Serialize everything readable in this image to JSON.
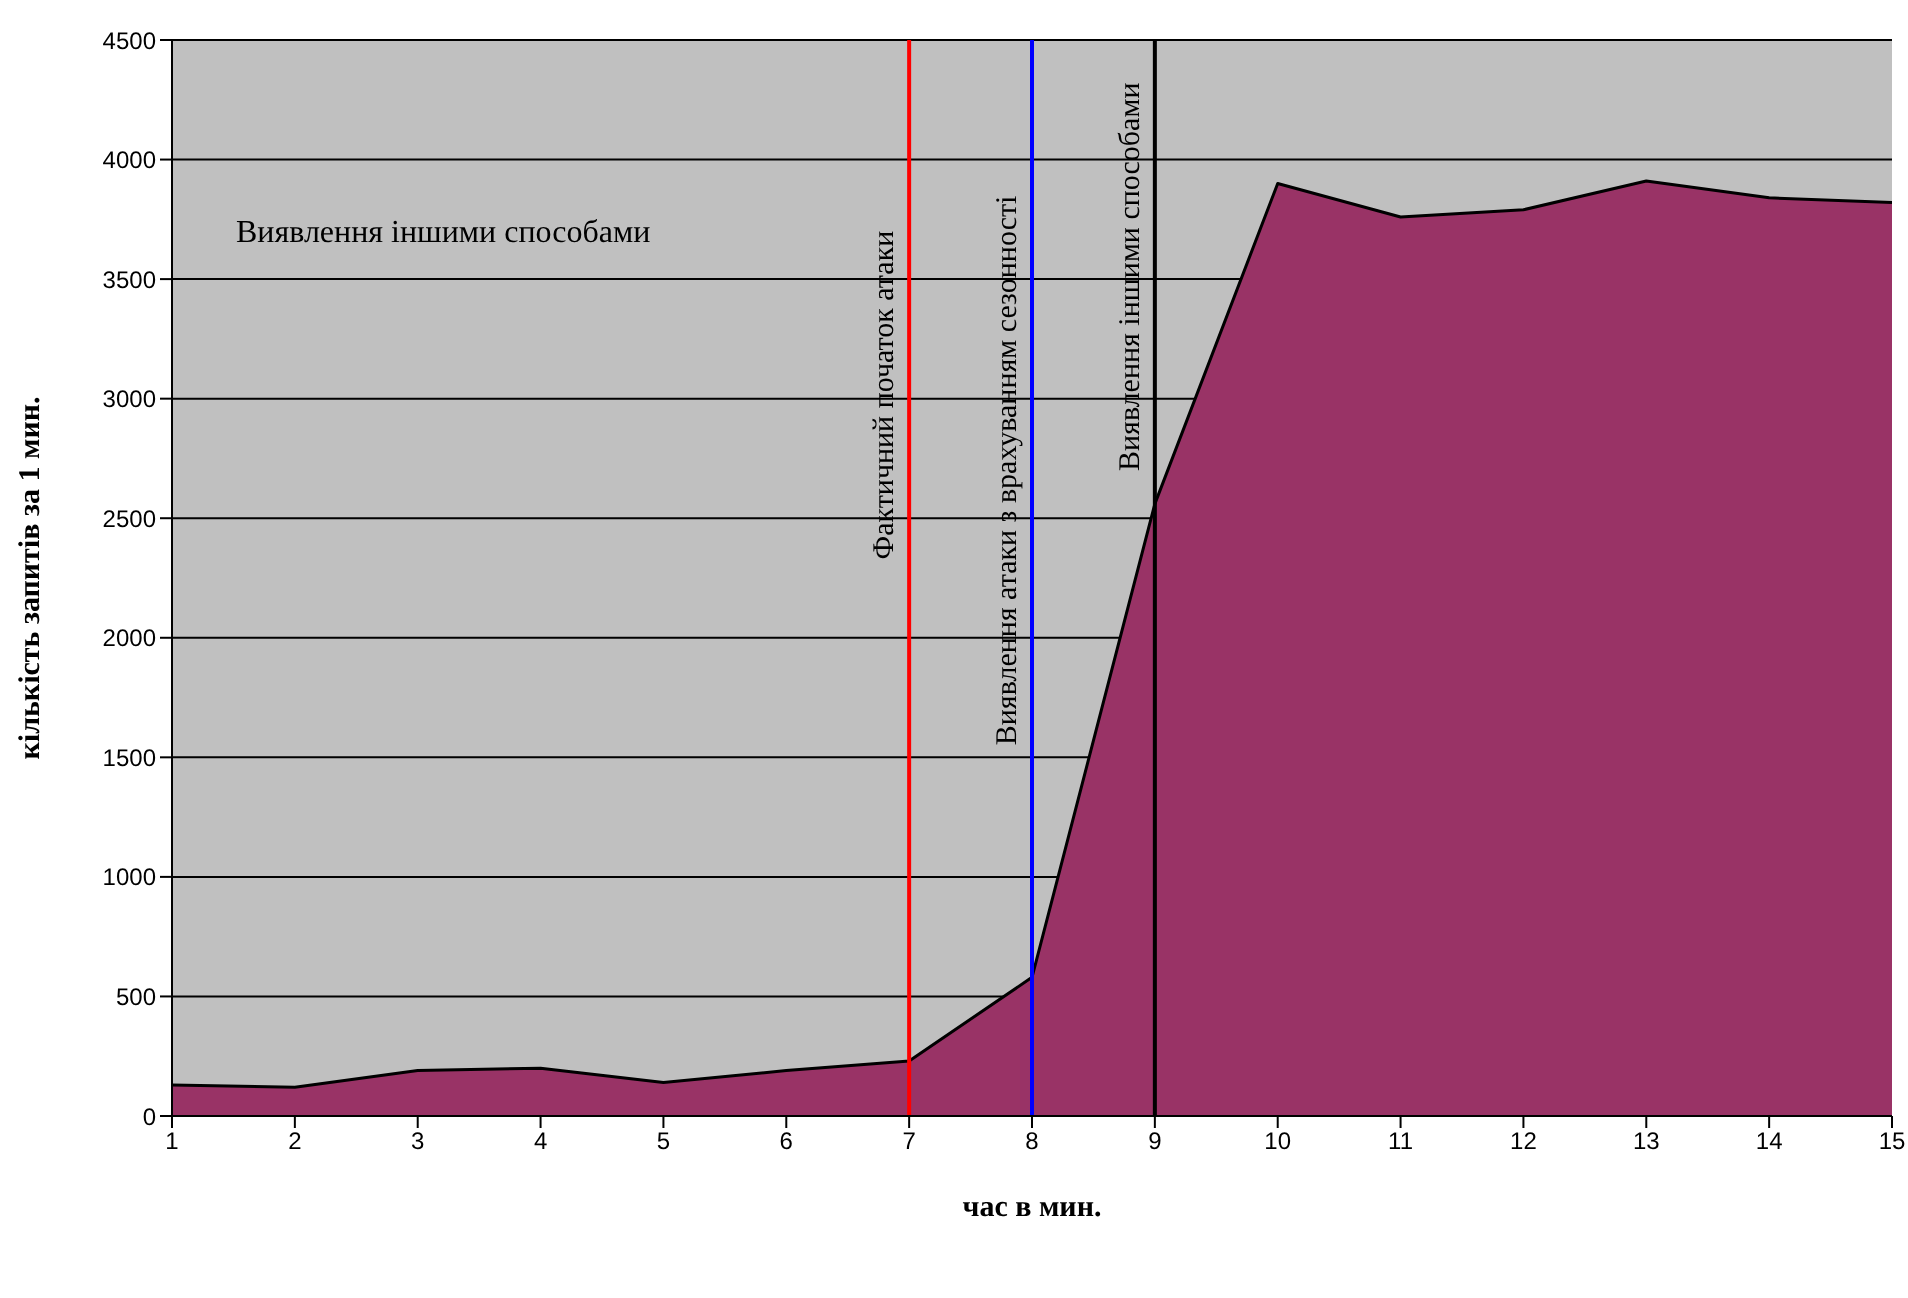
{
  "chart_data": {
    "type": "area",
    "xlabel": "час в мин.",
    "ylabel": "кількість запитів за 1 мин.",
    "x": [
      1,
      2,
      3,
      4,
      5,
      6,
      7,
      8,
      9,
      10,
      11,
      12,
      13,
      14,
      15
    ],
    "series": [
      {
        "color": "#993366",
        "values": [
          130,
          120,
          190,
          200,
          140,
          190,
          230,
          580,
          2560,
          3900,
          3760,
          3790,
          3910,
          3840,
          3820
        ]
      }
    ],
    "xlim": [
      1,
      15
    ],
    "xticks": [
      1,
      2,
      3,
      4,
      5,
      6,
      7,
      8,
      9,
      10,
      11,
      12,
      13,
      14,
      15
    ],
    "ylim": [
      0,
      4500
    ],
    "yticks": [
      0,
      500,
      1000,
      1500,
      2000,
      2500,
      3000,
      3500,
      4000,
      4500
    ],
    "grid": "y",
    "legend": false,
    "ref_lines": [
      {
        "axis": "x",
        "value": 7,
        "label": "Фактичний початок атаки",
        "color": "#ff0000"
      },
      {
        "axis": "x",
        "value": 8,
        "label": "Виявлення атаки з врахуванням сезонності",
        "color": "#0000ff"
      },
      {
        "axis": "x",
        "value": 9,
        "label": "Виявлення іншими способами",
        "color": "#000000"
      }
    ],
    "annotations": [
      "Виявлення іншими способами"
    ]
  }
}
